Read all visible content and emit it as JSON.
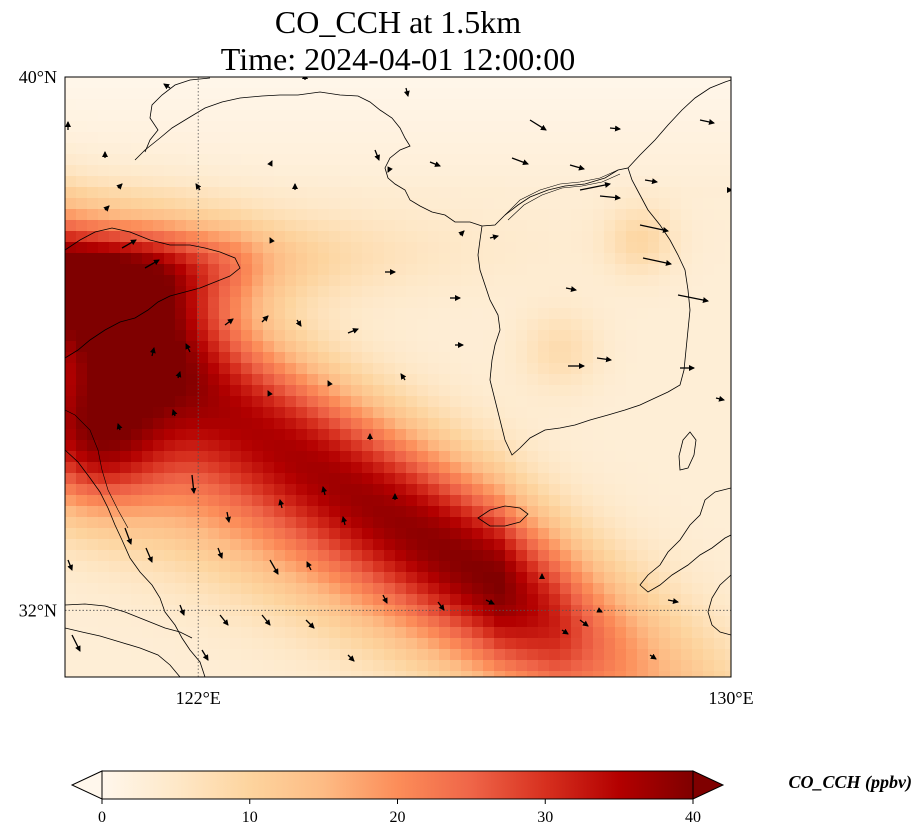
{
  "title": {
    "line1": "CO_CCH at 1.5km",
    "line2": "Time: 2024-04-01 12:00:00"
  },
  "map": {
    "lon_range": [
      120,
      130
    ],
    "lat_range": [
      31,
      40
    ],
    "gridlines": "dotted",
    "lat_ticks": [
      {
        "value": 40,
        "label": "40°N"
      },
      {
        "value": 32,
        "label": "32°N"
      }
    ],
    "lon_ticks": [
      {
        "value": 122,
        "label": "122°E"
      },
      {
        "value": 130,
        "label": "130°E"
      }
    ],
    "field_variable": "CO_CCH",
    "field_description": "high concentration plume over Yellow Sea and eastern China coast, decreasing toward Korea and Japan"
  },
  "colorbar": {
    "label": "CO_CCH (ppbv)",
    "colormap": [
      "#fff7ec",
      "#fee8c8",
      "#fdd49e",
      "#fdbb84",
      "#fc8d59",
      "#ef6548",
      "#d7301f",
      "#b30000",
      "#7f0000"
    ],
    "min": 0,
    "max": 40,
    "extend": "both",
    "ticks": [
      {
        "value": 0,
        "label": "0"
      },
      {
        "value": 10,
        "label": "10"
      },
      {
        "value": 20,
        "label": "20"
      },
      {
        "value": 30,
        "label": "30"
      },
      {
        "value": 40,
        "label": "40"
      }
    ]
  }
}
